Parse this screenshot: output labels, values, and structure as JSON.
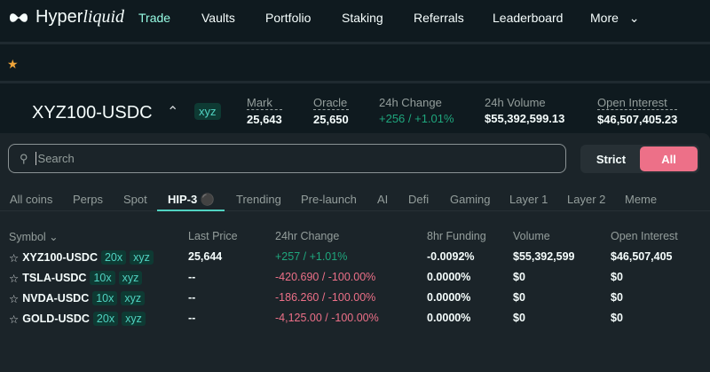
{
  "nav": {
    "brand": "Hyper",
    "brand_italic": "liquid",
    "items": [
      {
        "label": "Trade",
        "active": true
      },
      {
        "label": "Vaults"
      },
      {
        "label": "Portfolio"
      },
      {
        "label": "Staking"
      },
      {
        "label": "Referrals"
      },
      {
        "label": "Leaderboard"
      },
      {
        "label": "More"
      }
    ]
  },
  "ticker": {
    "name": "XYZ100-USDC",
    "dex": "xyz",
    "stats": [
      {
        "label": "Mark",
        "value": "25,643"
      },
      {
        "label": "Oracle",
        "value": "25,650"
      },
      {
        "label": "24h Change",
        "value": "+256 / +1.01%"
      },
      {
        "label": "24h Volume",
        "value": "$55,392,599.13"
      },
      {
        "label": "Open Interest",
        "value": "$46,507,405.23"
      }
    ]
  },
  "search": {
    "placeholder": "Search",
    "value": ""
  },
  "match": {
    "strict": "Strict",
    "all": "All"
  },
  "tabs": [
    "All coins",
    "Perps",
    "Spot",
    "HIP-3",
    "Trending",
    "Pre-launch",
    "AI",
    "Defi",
    "Gaming",
    "Layer 1",
    "Layer 2",
    "Meme"
  ],
  "table": {
    "headers": [
      "Symbol",
      "Last Price",
      "24hr Change",
      "8hr Funding",
      "Volume",
      "Open Interest"
    ],
    "rows": [
      {
        "symbol": "XYZ100-USDC",
        "lev": "20x",
        "dex": "xyz",
        "price": "25,644",
        "change": "+257 / +1.01%",
        "up": true,
        "funding": "-0.0092%",
        "volume": "$55,392,599",
        "oi": "$46,507,405"
      },
      {
        "symbol": "TSLA-USDC",
        "lev": "10x",
        "dex": "xyz",
        "price": "--",
        "change": "-420.690 / -100.00%",
        "up": false,
        "funding": "0.0000%",
        "volume": "$0",
        "oi": "$0"
      },
      {
        "symbol": "NVDA-USDC",
        "lev": "10x",
        "dex": "xyz",
        "price": "--",
        "change": "-186.260 / -100.00%",
        "up": false,
        "funding": "0.0000%",
        "volume": "$0",
        "oi": "$0"
      },
      {
        "symbol": "GOLD-USDC",
        "lev": "20x",
        "dex": "xyz",
        "price": "--",
        "change": "-4,125.00 / -100.00%",
        "up": false,
        "funding": "0.0000%",
        "volume": "$0",
        "oi": "$0"
      }
    ]
  },
  "colors": {
    "accent": "#97fce4",
    "teal": "#50d2c1",
    "green": "#1fa67d",
    "red": "#ed7088",
    "star": "#f0a53a"
  }
}
